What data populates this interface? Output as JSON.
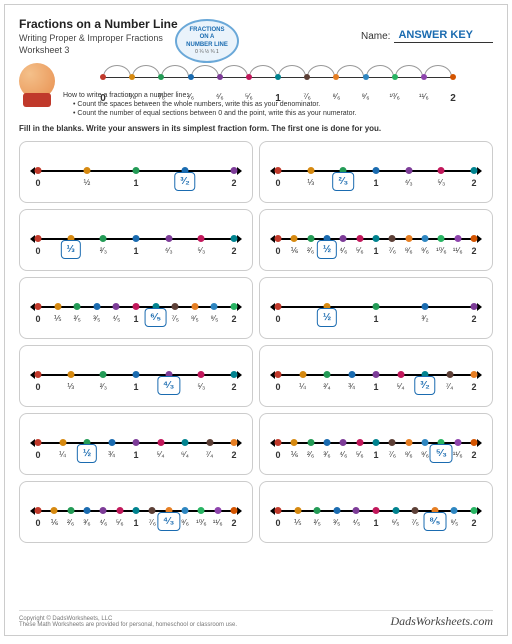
{
  "header": {
    "title": "Fractions on a Number Line",
    "subtitle": "Writing Proper & Improper Fractions",
    "worksheet": "Worksheet 3",
    "name_label": "Name:",
    "answer_key": "ANSWER KEY"
  },
  "badge": {
    "l1": "FRACTIONS",
    "l2": "ON A",
    "l3": "NUMBER LINE",
    "mini": "0 ¼ ½ ¾ 1"
  },
  "intro": {
    "howto": "How to write a fraction on a number line:",
    "b1": "Count the spaces between the whole numbers, write this as your denominator.",
    "b2": "Count the number of equal sections between 0 and the point, write this as your numerator."
  },
  "instructions": "Fill in the blanks. Write your answers in its simplest fraction form. The first one is done for you.",
  "colors": [
    "#c0392b",
    "#d68910",
    "#239b56",
    "#1a6bb0",
    "#7d3c98",
    "#c2185b",
    "#00838f",
    "#5d4037",
    "#e67e22",
    "#2e86c1",
    "#28b463",
    "#8e44ad",
    "#d35400"
  ],
  "demo": {
    "labels": [
      "0",
      "⅙",
      "²⁄₆",
      "³⁄₆",
      "⁴⁄₆",
      "⁵⁄₆",
      "1",
      "⁷⁄₆",
      "⁸⁄₆",
      "⁹⁄₆",
      "¹⁰⁄₆",
      "¹¹⁄₆",
      "2"
    ]
  },
  "problems": [
    {
      "labels": [
        "0",
        "½",
        "1",
        "",
        "2"
      ],
      "answer": "³⁄₂",
      "answer_idx": 3,
      "count": 5
    },
    {
      "labels": [
        "0",
        "⅓",
        "",
        "1",
        "⁴⁄₃",
        "⁵⁄₃",
        "2"
      ],
      "answer": "²⁄₃",
      "answer_idx": 2,
      "count": 7
    },
    {
      "labels": [
        "0",
        "",
        "²⁄₃",
        "1",
        "⁴⁄₃",
        "⁵⁄₃",
        "2"
      ],
      "answer": "⅓",
      "answer_idx": 1,
      "count": 7
    },
    {
      "labels": [
        "0",
        "⅙",
        "²⁄₆",
        "",
        "⁴⁄₆",
        "⁵⁄₆",
        "1",
        "⁷⁄₆",
        "⁸⁄₆",
        "⁹⁄₆",
        "¹⁰⁄₆",
        "¹¹⁄₆",
        "2"
      ],
      "answer": "½",
      "answer_idx": 3,
      "count": 13
    },
    {
      "labels": [
        "0",
        "⅕",
        "²⁄₅",
        "³⁄₅",
        "⁴⁄₅",
        "1",
        "",
        "⁷⁄₅",
        "⁸⁄₅",
        "⁹⁄₅",
        "2"
      ],
      "answer": "⁶⁄₅",
      "answer_idx": 6,
      "count": 11
    },
    {
      "labels": [
        "0",
        "",
        "1",
        "³⁄₂",
        "2"
      ],
      "answer": "½",
      "answer_idx": 1,
      "count": 5
    },
    {
      "labels": [
        "0",
        "⅓",
        "²⁄₃",
        "1",
        "",
        "⁵⁄₃",
        "2"
      ],
      "answer": "⁴⁄₃",
      "answer_idx": 4,
      "count": 7
    },
    {
      "labels": [
        "0",
        "¼",
        "²⁄₄",
        "¾",
        "1",
        "⁵⁄₄",
        "",
        "⁷⁄₄",
        "2"
      ],
      "answer": "³⁄₂",
      "answer_idx": 6,
      "count": 9
    },
    {
      "labels": [
        "0",
        "¼",
        "",
        "¾",
        "1",
        "⁵⁄₄",
        "⁶⁄₄",
        "⁷⁄₄",
        "2"
      ],
      "answer": "½",
      "answer_idx": 2,
      "count": 9
    },
    {
      "labels": [
        "0",
        "⅙",
        "²⁄₆",
        "³⁄₆",
        "⁴⁄₆",
        "⁵⁄₆",
        "1",
        "⁷⁄₆",
        "⁸⁄₆",
        "⁹⁄₆",
        "",
        "¹¹⁄₆",
        "2"
      ],
      "answer": "⁵⁄₃",
      "answer_idx": 10,
      "count": 13
    },
    {
      "labels": [
        "0",
        "⅙",
        "²⁄₆",
        "³⁄₆",
        "⁴⁄₆",
        "⁵⁄₆",
        "1",
        "⁷⁄₆",
        "",
        "⁹⁄₆",
        "¹⁰⁄₆",
        "¹¹⁄₆",
        "2"
      ],
      "answer": "⁴⁄₃",
      "answer_idx": 8,
      "count": 13
    },
    {
      "labels": [
        "0",
        "⅕",
        "²⁄₅",
        "³⁄₅",
        "⁴⁄₅",
        "1",
        "⁶⁄₅",
        "⁷⁄₅",
        "",
        "⁹⁄₅",
        "2"
      ],
      "answer": "⁸⁄₅",
      "answer_idx": 8,
      "count": 11
    }
  ],
  "footer": {
    "copyright": "Copyright © DadsWorksheets, LLC",
    "note": "These Math Worksheets are provided for personal, homeschool or classroom use.",
    "brand": "DadsWorksheets.com"
  }
}
